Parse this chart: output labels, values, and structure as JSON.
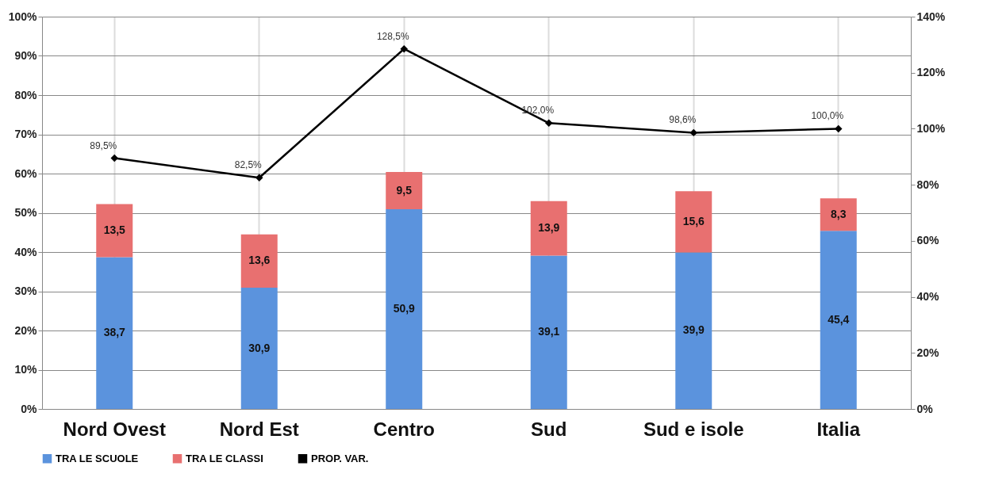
{
  "chart_data": {
    "type": "bar",
    "stacked": true,
    "categories": [
      "Nord Ovest",
      "Nord Est",
      "Centro",
      "Sud",
      "Sud e isole",
      "Italia"
    ],
    "series": [
      {
        "name": "TRA LE SCUOLE",
        "color": "#5b93dd",
        "values": [
          38.7,
          30.9,
          50.9,
          39.1,
          39.9,
          45.4
        ],
        "value_labels": [
          "38,7",
          "30,9",
          "50,9",
          "39,1",
          "39,9",
          "45,4"
        ]
      },
      {
        "name": "TRA LE CLASSI",
        "color": "#e87070",
        "values": [
          13.5,
          13.6,
          9.5,
          13.9,
          15.6,
          8.3
        ],
        "value_labels": [
          "13,5",
          "13,6",
          "9,5",
          "13,9",
          "15,6",
          "8,3"
        ]
      },
      {
        "name": "PROP. VAR.",
        "type": "line",
        "axis": "y2",
        "color": "#000000",
        "marker": "diamond",
        "values": [
          89.5,
          82.5,
          128.5,
          102.0,
          98.6,
          100.0
        ],
        "value_labels": [
          "89,5%",
          "82,5%",
          "128,5%",
          "102,0%",
          "98,6%",
          "100,0%"
        ]
      }
    ],
    "ylim": [
      0,
      100
    ],
    "yticks": [
      {
        "value": 0,
        "label": "0%"
      },
      {
        "value": 10,
        "label": "10%"
      },
      {
        "value": 20,
        "label": "20%"
      },
      {
        "value": 30,
        "label": "30%"
      },
      {
        "value": 40,
        "label": "40%"
      },
      {
        "value": 50,
        "label": "50%"
      },
      {
        "value": 60,
        "label": "60%"
      },
      {
        "value": 70,
        "label": "70%"
      },
      {
        "value": 80,
        "label": "80%"
      },
      {
        "value": 90,
        "label": "90%"
      },
      {
        "value": 100,
        "label": "100%"
      }
    ],
    "y2lim": [
      0,
      140
    ],
    "y2ticks": [
      {
        "value": 0,
        "label": "0%"
      },
      {
        "value": 20,
        "label": "20%"
      },
      {
        "value": 40,
        "label": "40%"
      },
      {
        "value": 60,
        "label": "60%"
      },
      {
        "value": 80,
        "label": "80%"
      },
      {
        "value": 100,
        "label": "100%"
      },
      {
        "value": 120,
        "label": "120%"
      },
      {
        "value": 140,
        "label": "140%"
      }
    ],
    "grid": true,
    "legend": "bottom"
  }
}
